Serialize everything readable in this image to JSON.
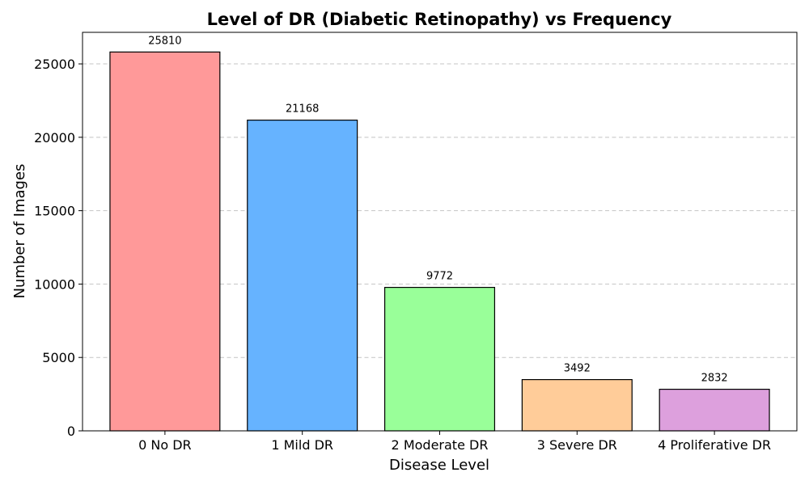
{
  "chart_data": {
    "type": "bar",
    "title": "Level of DR (Diabetic Retinopathy) vs Frequency",
    "xlabel": "Disease Level",
    "ylabel": "Number of Images",
    "categories": [
      "0 No DR",
      "1 Mild DR",
      "2 Moderate DR",
      "3 Severe DR",
      "4 Proliferative DR"
    ],
    "values": [
      25810,
      21168,
      9772,
      3492,
      2832
    ],
    "value_labels": [
      "25810",
      "21168",
      "9772",
      "3492",
      "2832"
    ],
    "colors": [
      "#ff9999",
      "#66b3ff",
      "#99ff99",
      "#ffcc99",
      "#dda0dd"
    ],
    "ylim": [
      0,
      27150
    ],
    "yticks": [
      0,
      5000,
      10000,
      15000,
      20000,
      25000
    ],
    "ytick_labels": [
      "0",
      "5000",
      "10000",
      "15000",
      "20000",
      "25000"
    ],
    "grid": "y-axis dashed",
    "legend": "none"
  }
}
